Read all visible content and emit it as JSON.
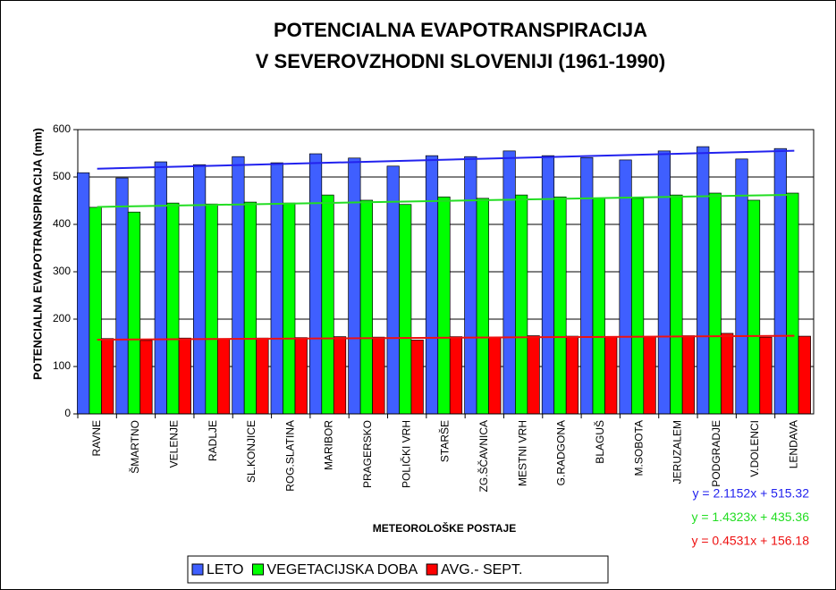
{
  "chart_data": {
    "type": "bar",
    "title": [
      "POTENCIALNA EVAPOTRANSPIRACIJA",
      "V SEVEROVZHODNI SLOVENIJI (1961-1990)"
    ],
    "y_label": "POTENCIALNA EVAPOTRANSPIRACIJA (mm)",
    "x_label": "METEOROLOŠKE POSTAJE",
    "categories": [
      "RAVNE",
      "ŠMARTNO",
      "VELENJE",
      "RADLJE",
      "SL.KONJICE",
      "ROG.SLATINA",
      "MARIBOR",
      "PRAGERSKO",
      "POLIČKI VRH",
      "STARŠE",
      "ZG.ŠČAVNICA",
      "MESTNI VRH",
      "G.RADGONA",
      "BLAGUŠ",
      "M.SOBOTA",
      "JERUZALEM",
      "PODGRADJE",
      "V.DOLENCI",
      "LENDAVA"
    ],
    "series": [
      {
        "name": "LETO",
        "color": "#3f5fff",
        "values": [
          509,
          498,
          532,
          526,
          543,
          530,
          549,
          540,
          523,
          545,
          543,
          555,
          545,
          541,
          536,
          555,
          564,
          538,
          560
        ]
      },
      {
        "name": "VEGETACIJSKA DOBA",
        "color": "#00ff00",
        "values": [
          436,
          426,
          445,
          443,
          447,
          445,
          462,
          451,
          442,
          458,
          455,
          462,
          458,
          455,
          455,
          462,
          466,
          451,
          466
        ]
      },
      {
        "name": "AVG.- SEPT.",
        "color": "#ff0000",
        "values": [
          159,
          155,
          160,
          158,
          160,
          161,
          163,
          162,
          156,
          163,
          162,
          165,
          164,
          162,
          163,
          165,
          170,
          162,
          164
        ]
      }
    ],
    "trendlines": [
      {
        "label": "y = 2.1152x + 515.32",
        "slope": 2.1152,
        "intercept": 515.32,
        "color": "#2222ee"
      },
      {
        "label": "y = 1.4323x + 435.36",
        "slope": 1.4323,
        "intercept": 435.36,
        "color": "#22dd22"
      },
      {
        "label": "y = 0.4531x + 156.18",
        "slope": 0.4531,
        "intercept": 156.18,
        "color": "#ee1111"
      }
    ],
    "ylim": [
      0,
      600
    ],
    "yticks": [
      0,
      100,
      200,
      300,
      400,
      500,
      600
    ],
    "grid": true
  }
}
